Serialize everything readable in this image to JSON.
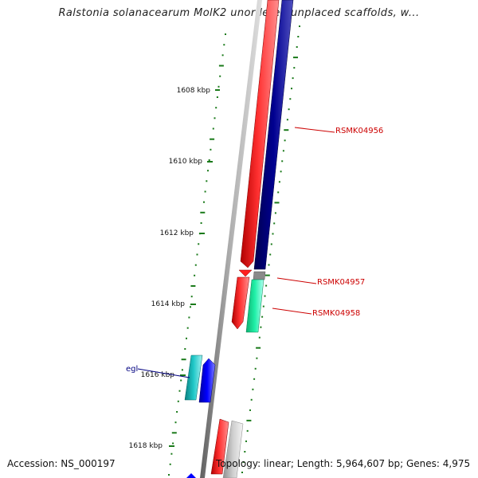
{
  "title": "Ralstonia solanacearum MolK2 unordered unplaced scaffolds, w...",
  "ticks": [
    "1608 kbp",
    "1610 kbp",
    "1612 kbp",
    "1614 kbp",
    "1616 kbp",
    "1618 kbp"
  ],
  "gene_labels": {
    "g1": "RSMK04956",
    "g2": "RSMK04957",
    "g3": "RSMK04958",
    "egl": "egl"
  },
  "footer": {
    "accession": "Accession: NS_000197",
    "topology": "Topology: linear; Length: 5,964,607 bp; Genes: 4,975"
  },
  "colors": {
    "forward_gene": "#ff1a1a",
    "reverse_gene": "#000080",
    "teal_gene": "#19b8b8",
    "blue_gene": "#0000ff",
    "green_gene": "#19f0a0",
    "grey_gene": "#c8c8c8",
    "label_red": "#cc0000",
    "label_blue": "#000080",
    "gc_marks": "#1a7a1a"
  }
}
